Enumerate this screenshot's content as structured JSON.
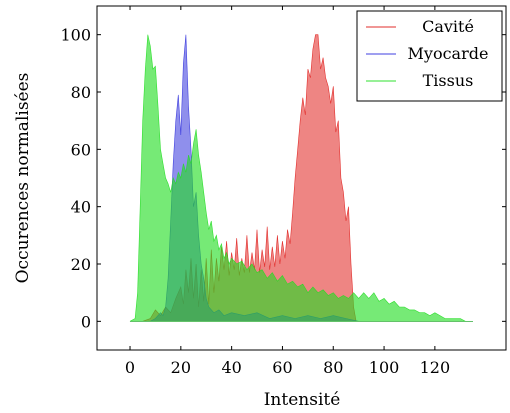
{
  "chart_data": {
    "type": "area",
    "xlabel": "Intensité",
    "ylabel": "Occurences normalisées",
    "xlim": [
      -13,
      148
    ],
    "ylim": [
      -10,
      110
    ],
    "x_ticks": [
      0,
      20,
      40,
      60,
      80,
      100,
      120
    ],
    "y_ticks": [
      0,
      20,
      40,
      60,
      80,
      100
    ],
    "grid": false,
    "legend_position": "top-right",
    "series": [
      {
        "name": "Cavité",
        "color": "#e0201e",
        "fill_opacity": 0.55,
        "points": [
          [
            0,
            0
          ],
          [
            5,
            0
          ],
          [
            8,
            1
          ],
          [
            10,
            4
          ],
          [
            12,
            2
          ],
          [
            14,
            5
          ],
          [
            16,
            3
          ],
          [
            18,
            8
          ],
          [
            20,
            12
          ],
          [
            21,
            6
          ],
          [
            22,
            18
          ],
          [
            23,
            10
          ],
          [
            24,
            22
          ],
          [
            25,
            8
          ],
          [
            26,
            20
          ],
          [
            27,
            5
          ],
          [
            28,
            18
          ],
          [
            29,
            7
          ],
          [
            30,
            22
          ],
          [
            31,
            6
          ],
          [
            32,
            25
          ],
          [
            33,
            10
          ],
          [
            34,
            22
          ],
          [
            35,
            14
          ],
          [
            36,
            26
          ],
          [
            37,
            18
          ],
          [
            38,
            28
          ],
          [
            39,
            16
          ],
          [
            40,
            24
          ],
          [
            41,
            18
          ],
          [
            42,
            29
          ],
          [
            43,
            16
          ],
          [
            44,
            22
          ],
          [
            45,
            17
          ],
          [
            46,
            30
          ],
          [
            47,
            17
          ],
          [
            48,
            24
          ],
          [
            49,
            18
          ],
          [
            50,
            32
          ],
          [
            51,
            17
          ],
          [
            52,
            25
          ],
          [
            53,
            19
          ],
          [
            54,
            33
          ],
          [
            55,
            18
          ],
          [
            56,
            26
          ],
          [
            57,
            19
          ],
          [
            58,
            30
          ],
          [
            59,
            20
          ],
          [
            60,
            28
          ],
          [
            61,
            22
          ],
          [
            62,
            32
          ],
          [
            63,
            27
          ],
          [
            64,
            38
          ],
          [
            65,
            50
          ],
          [
            66,
            60
          ],
          [
            67,
            70
          ],
          [
            68,
            78
          ],
          [
            69,
            72
          ],
          [
            70,
            88
          ],
          [
            71,
            85
          ],
          [
            72,
            95
          ],
          [
            73,
            100
          ],
          [
            74,
            100
          ],
          [
            75,
            88
          ],
          [
            76,
            92
          ],
          [
            77,
            85
          ],
          [
            78,
            82
          ],
          [
            79,
            76
          ],
          [
            80,
            82
          ],
          [
            81,
            66
          ],
          [
            82,
            70
          ],
          [
            83,
            50
          ],
          [
            84,
            45
          ],
          [
            85,
            35
          ],
          [
            86,
            40
          ],
          [
            87,
            20
          ],
          [
            88,
            5
          ],
          [
            89,
            0
          ],
          [
            135,
            0
          ]
        ]
      },
      {
        "name": "Myocarde",
        "color": "#3333dd",
        "fill_opacity": 0.55,
        "points": [
          [
            0,
            0
          ],
          [
            8,
            0
          ],
          [
            10,
            1
          ],
          [
            12,
            3
          ],
          [
            13,
            2
          ],
          [
            14,
            5
          ],
          [
            15,
            15
          ],
          [
            16,
            35
          ],
          [
            17,
            55
          ],
          [
            18,
            70
          ],
          [
            19,
            79
          ],
          [
            20,
            65
          ],
          [
            21,
            90
          ],
          [
            22,
            100
          ],
          [
            23,
            75
          ],
          [
            24,
            60
          ],
          [
            25,
            40
          ],
          [
            26,
            45
          ],
          [
            27,
            30
          ],
          [
            28,
            20
          ],
          [
            29,
            15
          ],
          [
            30,
            8
          ],
          [
            31,
            5
          ],
          [
            33,
            3
          ],
          [
            35,
            4
          ],
          [
            37,
            2
          ],
          [
            40,
            3
          ],
          [
            45,
            2
          ],
          [
            50,
            3
          ],
          [
            55,
            1
          ],
          [
            60,
            2
          ],
          [
            65,
            1
          ],
          [
            70,
            2
          ],
          [
            75,
            1
          ],
          [
            80,
            2
          ],
          [
            85,
            1
          ],
          [
            90,
            0
          ],
          [
            135,
            0
          ]
        ]
      },
      {
        "name": "Tissus",
        "color": "#22dd22",
        "fill_opacity": 0.62,
        "points": [
          [
            0,
            0
          ],
          [
            2,
            1
          ],
          [
            3,
            10
          ],
          [
            4,
            40
          ],
          [
            5,
            70
          ],
          [
            6,
            88
          ],
          [
            7,
            100
          ],
          [
            8,
            96
          ],
          [
            9,
            88
          ],
          [
            10,
            89
          ],
          [
            11,
            75
          ],
          [
            12,
            60
          ],
          [
            13,
            55
          ],
          [
            14,
            50
          ],
          [
            15,
            48
          ],
          [
            16,
            45
          ],
          [
            17,
            50
          ],
          [
            18,
            48
          ],
          [
            19,
            52
          ],
          [
            20,
            50
          ],
          [
            21,
            55
          ],
          [
            22,
            52
          ],
          [
            23,
            58
          ],
          [
            24,
            55
          ],
          [
            25,
            62
          ],
          [
            26,
            67
          ],
          [
            27,
            58
          ],
          [
            28,
            52
          ],
          [
            29,
            45
          ],
          [
            30,
            38
          ],
          [
            31,
            32
          ],
          [
            32,
            35
          ],
          [
            33,
            28
          ],
          [
            34,
            30
          ],
          [
            35,
            25
          ],
          [
            36,
            27
          ],
          [
            37,
            22
          ],
          [
            38,
            24
          ],
          [
            39,
            20
          ],
          [
            40,
            22
          ],
          [
            42,
            20
          ],
          [
            44,
            21
          ],
          [
            46,
            18
          ],
          [
            48,
            20
          ],
          [
            50,
            17
          ],
          [
            52,
            18
          ],
          [
            54,
            15
          ],
          [
            56,
            17
          ],
          [
            58,
            14
          ],
          [
            60,
            16
          ],
          [
            62,
            13
          ],
          [
            64,
            14
          ],
          [
            66,
            12
          ],
          [
            68,
            13
          ],
          [
            70,
            10
          ],
          [
            72,
            12
          ],
          [
            74,
            10
          ],
          [
            76,
            11
          ],
          [
            78,
            9
          ],
          [
            80,
            10
          ],
          [
            82,
            8
          ],
          [
            84,
            9
          ],
          [
            86,
            8
          ],
          [
            88,
            10
          ],
          [
            90,
            8
          ],
          [
            92,
            10
          ],
          [
            94,
            8
          ],
          [
            96,
            10
          ],
          [
            98,
            7
          ],
          [
            100,
            8
          ],
          [
            102,
            6
          ],
          [
            104,
            7
          ],
          [
            106,
            5
          ],
          [
            108,
            5
          ],
          [
            110,
            4
          ],
          [
            112,
            4
          ],
          [
            114,
            3
          ],
          [
            116,
            3
          ],
          [
            118,
            2
          ],
          [
            120,
            3
          ],
          [
            122,
            2
          ],
          [
            124,
            1
          ],
          [
            126,
            1
          ],
          [
            128,
            1
          ],
          [
            130,
            1
          ],
          [
            132,
            0
          ],
          [
            135,
            0
          ]
        ]
      }
    ]
  }
}
